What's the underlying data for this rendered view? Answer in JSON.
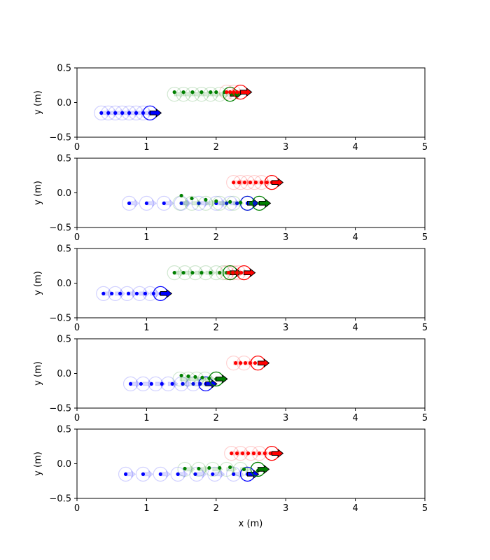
{
  "figure": {
    "xlabel": "x (m)"
  },
  "colors": {
    "blue": "#0000ff",
    "green": "#008000",
    "red": "#ff0000",
    "arrow_edge": "#000000"
  },
  "chart_data": [
    {
      "type": "scatter",
      "ylabel": "y (m)",
      "xlim": [
        0,
        5
      ],
      "ylim": [
        -0.5,
        0.5
      ],
      "xticks": [
        "0",
        "1",
        "2",
        "3",
        "4",
        "5"
      ],
      "yticks": [
        "0.5",
        "0.0",
        "−0.5"
      ],
      "series": [
        {
          "color": "blue",
          "y": -0.15,
          "x": [
            0.35,
            0.45,
            0.55,
            0.65,
            0.75,
            0.85,
            0.95,
            1.05
          ],
          "robot_x": 1.05,
          "robot_y": -0.15,
          "history": [
            0.35,
            0.45,
            0.55,
            0.65,
            0.75,
            0.85,
            0.95
          ]
        },
        {
          "color": "green",
          "y": 0.15,
          "x": [
            1.4,
            1.53,
            1.66,
            1.79,
            1.92,
            2.0,
            2.12,
            2.2
          ],
          "robot_x": 2.2,
          "robot_y": 0.12,
          "history": [
            1.4,
            1.53,
            1.66,
            1.79,
            1.92,
            2.05
          ]
        },
        {
          "color": "red",
          "y": 0.15,
          "x": [
            2.15,
            2.2,
            2.25,
            2.3,
            2.35
          ],
          "robot_x": 2.35,
          "robot_y": 0.15,
          "history": [
            2.15,
            2.25
          ]
        }
      ]
    },
    {
      "type": "scatter",
      "ylabel": "y (m)",
      "xlim": [
        0,
        5
      ],
      "ylim": [
        -0.5,
        0.5
      ],
      "xticks": [
        "0",
        "1",
        "2",
        "3",
        "4",
        "5"
      ],
      "yticks": [
        "0.5",
        "0.0",
        "−0.5"
      ],
      "series": [
        {
          "color": "blue",
          "y": -0.15,
          "x": [
            0.75,
            1.0,
            1.25,
            1.5,
            1.75,
            2.0,
            2.15,
            2.3,
            2.45
          ],
          "robot_x": 2.45,
          "robot_y": -0.15,
          "history": [
            0.75,
            1.0,
            1.25,
            1.5,
            1.75,
            2.0,
            2.2
          ]
        },
        {
          "color": "green",
          "y": -0.05,
          "x": [
            1.5,
            1.65,
            1.85,
            2.0,
            2.2,
            2.35,
            2.5,
            2.62
          ],
          "yv": [
            -0.04,
            -0.08,
            -0.1,
            -0.12,
            -0.13,
            -0.14,
            -0.15,
            -0.15
          ],
          "robot_x": 2.62,
          "robot_y": -0.15,
          "history": [
            1.48,
            1.65,
            1.85,
            2.05,
            2.25,
            2.45
          ]
        },
        {
          "color": "red",
          "y": 0.15,
          "x": [
            2.25,
            2.33,
            2.41,
            2.49,
            2.57,
            2.65,
            2.73,
            2.8
          ],
          "robot_x": 2.8,
          "robot_y": 0.15,
          "history": [
            2.25,
            2.35,
            2.45,
            2.55,
            2.65
          ]
        }
      ]
    },
    {
      "type": "scatter",
      "ylabel": "y (m)",
      "xlim": [
        0,
        5
      ],
      "ylim": [
        -0.5,
        0.5
      ],
      "xticks": [
        "0",
        "1",
        "2",
        "3",
        "4",
        "5"
      ],
      "yticks": [
        "0.5",
        "0.0",
        "−0.5"
      ],
      "series": [
        {
          "color": "blue",
          "y": -0.15,
          "x": [
            0.38,
            0.5,
            0.62,
            0.74,
            0.86,
            0.98,
            1.1,
            1.2
          ],
          "robot_x": 1.2,
          "robot_y": -0.15,
          "history": [
            0.38,
            0.55,
            0.72,
            0.9,
            1.05
          ]
        },
        {
          "color": "green",
          "y": 0.15,
          "x": [
            1.4,
            1.53,
            1.66,
            1.79,
            1.92,
            2.05,
            2.15,
            2.2
          ],
          "robot_x": 2.2,
          "robot_y": 0.15,
          "history": [
            1.4,
            1.55,
            1.7,
            1.85,
            2.0,
            2.1
          ]
        },
        {
          "color": "red",
          "y": 0.15,
          "x": [
            2.18,
            2.24,
            2.3,
            2.36,
            2.42
          ],
          "robot_x": 2.4,
          "robot_y": 0.15,
          "history": [
            2.15,
            2.25,
            2.32
          ]
        }
      ]
    },
    {
      "type": "scatter",
      "ylabel": "y (m)",
      "xlim": [
        0,
        5
      ],
      "ylim": [
        -0.5,
        0.5
      ],
      "xticks": [
        "0",
        "1",
        "2",
        "3",
        "4",
        "5"
      ],
      "yticks": [
        "0.5",
        "0.0",
        "−0.5"
      ],
      "series": [
        {
          "color": "blue",
          "y": -0.15,
          "x": [
            0.77,
            0.92,
            1.07,
            1.22,
            1.37,
            1.52,
            1.67,
            1.77,
            1.85
          ],
          "robot_x": 1.85,
          "robot_y": -0.15,
          "history": [
            0.77,
            0.95,
            1.13,
            1.31,
            1.5,
            1.67
          ]
        },
        {
          "color": "green",
          "y": -0.05,
          "x": [
            1.5,
            1.6,
            1.7,
            1.8,
            1.9,
            2.0,
            2.1
          ],
          "yv": [
            -0.03,
            -0.04,
            -0.05,
            -0.06,
            -0.07,
            -0.08,
            -0.09
          ],
          "robot_x": 2.0,
          "robot_y": -0.08,
          "history": [
            1.48,
            1.6,
            1.72,
            1.84
          ]
        },
        {
          "color": "red",
          "y": 0.15,
          "x": [
            2.28,
            2.35,
            2.42,
            2.49,
            2.56,
            2.62
          ],
          "robot_x": 2.6,
          "robot_y": 0.15,
          "history": [
            2.25,
            2.4
          ]
        }
      ]
    },
    {
      "type": "scatter",
      "ylabel": "y (m)",
      "xlim": [
        0,
        5
      ],
      "ylim": [
        -0.5,
        0.5
      ],
      "xticks": [
        "0",
        "1",
        "2",
        "3",
        "4",
        "5"
      ],
      "yticks": [
        "0.5",
        "0.0",
        "−0.5"
      ],
      "series": [
        {
          "color": "blue",
          "y": -0.15,
          "x": [
            0.7,
            0.95,
            1.2,
            1.45,
            1.7,
            1.95,
            2.25,
            2.45
          ],
          "robot_x": 2.45,
          "robot_y": -0.15,
          "history": [
            0.7,
            0.95,
            1.2,
            1.45,
            1.72,
            1.98,
            2.25
          ]
        },
        {
          "color": "green",
          "y": -0.1,
          "x": [
            1.55,
            1.75,
            1.9,
            2.05,
            2.2,
            2.4,
            2.6,
            2.7
          ],
          "yv": [
            -0.07,
            -0.07,
            -0.06,
            -0.06,
            -0.05,
            -0.08,
            -0.1,
            -0.1
          ],
          "robot_x": 2.6,
          "robot_y": -0.08,
          "history": [
            1.55,
            1.75,
            1.95,
            2.15,
            2.35
          ]
        },
        {
          "color": "red",
          "y": 0.15,
          "x": [
            2.22,
            2.3,
            2.38,
            2.46,
            2.54,
            2.62,
            2.7,
            2.78
          ],
          "robot_x": 2.8,
          "robot_y": 0.15,
          "history": [
            2.22,
            2.35,
            2.5,
            2.62
          ]
        }
      ]
    }
  ]
}
